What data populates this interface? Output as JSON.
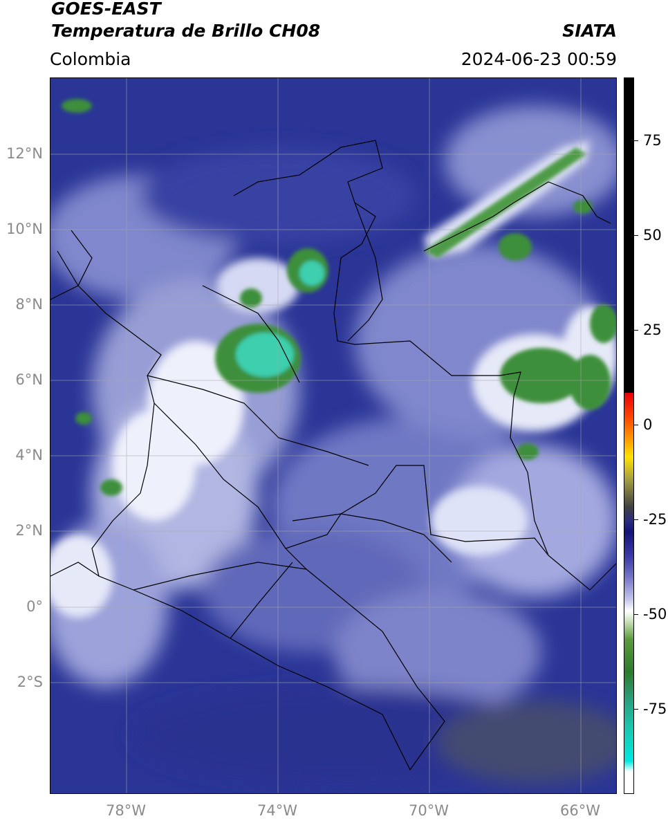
{
  "header": {
    "satellite": "GOES-EAST",
    "product": "Temperatura de Brillo CH08",
    "organization": "SIATA",
    "region": "Colombia",
    "datetime": "2024-06-23 00:59"
  },
  "map": {
    "lat_labels": [
      "12°N",
      "10°N",
      "8°N",
      "6°N",
      "4°N",
      "2°N",
      "0°",
      "2°S"
    ],
    "lon_labels": [
      "78°W",
      "74°W",
      "70°W",
      "66°W"
    ],
    "colors": {
      "background_cold": "#1e2a8e",
      "cloud_light": "#d8dcf4",
      "deep_convection": "#3d8f3a",
      "core": "#3ccfae",
      "borders": "#000000",
      "grid": "#9a9a9a"
    }
  },
  "colorbar": {
    "ticks": [
      "75",
      "50",
      "25",
      "0",
      "-25",
      "-50",
      "-75"
    ]
  }
}
